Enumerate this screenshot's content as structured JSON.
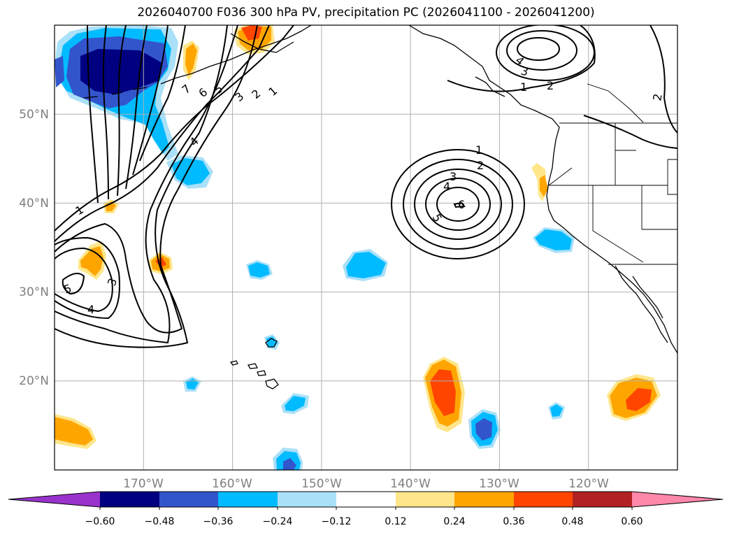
{
  "title": "2026040700 F036 300 hPa PV, precipitation PC (2026041100 - 2026041200)",
  "map": {
    "lat_range": [
      10,
      60
    ],
    "lon_range": [
      -180,
      -110
    ],
    "lat_ticks": [
      {
        "value": 20,
        "label": "20°N"
      },
      {
        "value": 30,
        "label": "30°N"
      },
      {
        "value": 40,
        "label": "40°N"
      },
      {
        "value": 50,
        "label": "50°N"
      }
    ],
    "lon_ticks": [
      {
        "value": -170,
        "label": "170°W"
      },
      {
        "value": -160,
        "label": "160°W"
      },
      {
        "value": -150,
        "label": "150°W"
      },
      {
        "value": -140,
        "label": "140°W"
      },
      {
        "value": -130,
        "label": "130°W"
      },
      {
        "value": -120,
        "label": "120°W"
      }
    ],
    "pv_contour_labels": [
      "1",
      "2",
      "3",
      "4",
      "5",
      "6",
      "7",
      "1",
      "2",
      "3",
      "4",
      "5",
      "6",
      "1",
      "3",
      "4",
      "5",
      "4",
      "3",
      "2",
      "1",
      "2"
    ]
  },
  "colorbar": {
    "colors": [
      "#9933cc",
      "#000080",
      "#3355cc",
      "#00bbff",
      "#aae0f8",
      "#ffffff",
      "#ffe68a",
      "#ffa500",
      "#ff4500",
      "#b22222",
      "#ff88aa"
    ],
    "tick_labels": [
      "−0.60",
      "−0.48",
      "−0.36",
      "−0.24",
      "−0.12",
      "0.12",
      "0.24",
      "0.36",
      "0.48",
      "0.60"
    ]
  }
}
